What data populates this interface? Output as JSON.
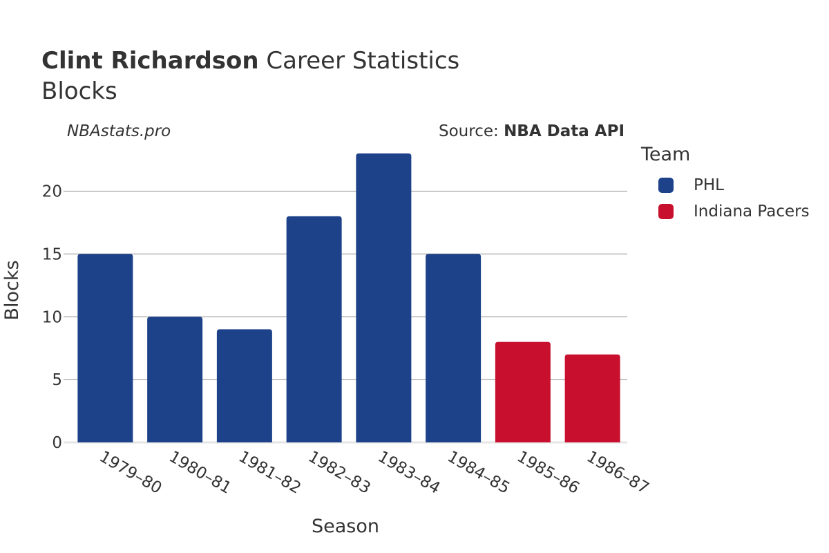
{
  "header": {
    "title_bold": "Clint Richardson",
    "title_rest": "Career Statistics",
    "subtitle": "Blocks",
    "credit": "NBAstats.pro",
    "source_prefix": "Source:",
    "source_name": "NBA Data API"
  },
  "legend": {
    "title": "Team",
    "items": [
      {
        "label": "PHL",
        "color": "#1d428a"
      },
      {
        "label": "Indiana Pacers",
        "color": "#c8102e"
      }
    ]
  },
  "chart_data": {
    "type": "bar",
    "title": "Clint Richardson Career Statistics",
    "subtitle": "Blocks",
    "xlabel": "Season",
    "ylabel": "Blocks",
    "ylim": [
      0,
      23
    ],
    "yticks": [
      0,
      5,
      10,
      15,
      20
    ],
    "grid": true,
    "legend_position": "right",
    "categories": [
      "1979–80",
      "1980–81",
      "1981–82",
      "1982–83",
      "1983–84",
      "1984–85",
      "1985–86",
      "1986–87"
    ],
    "values": [
      15,
      10,
      9,
      18,
      23,
      15,
      8,
      7
    ],
    "teams": [
      "PHL",
      "PHL",
      "PHL",
      "PHL",
      "PHL",
      "PHL",
      "Indiana Pacers",
      "Indiana Pacers"
    ],
    "series": [
      {
        "name": "PHL",
        "color": "#1d428a"
      },
      {
        "name": "Indiana Pacers",
        "color": "#c8102e"
      }
    ]
  }
}
